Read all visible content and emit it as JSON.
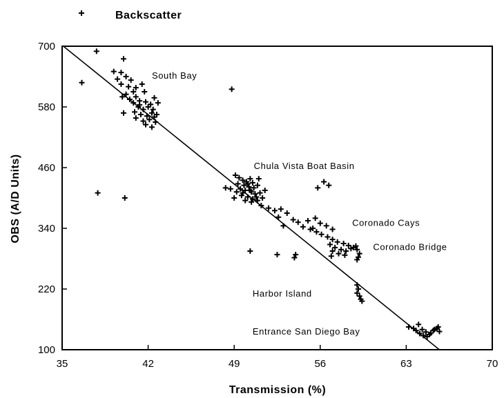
{
  "chart_data": {
    "type": "scatter",
    "title": "",
    "xlabel": "Transmission (%)",
    "ylabel": "OBS (A/D Units)",
    "xlim": [
      35,
      70
    ],
    "ylim": [
      100,
      700
    ],
    "xticks": [
      35,
      42,
      49,
      56,
      63,
      70
    ],
    "yticks": [
      100,
      220,
      340,
      460,
      580,
      700
    ],
    "grid": false,
    "legend": {
      "placement": "top-left",
      "entries": [
        {
          "marker": "+",
          "label": "Backscatter"
        }
      ]
    },
    "series": [
      {
        "name": "Backscatter",
        "marker": "+",
        "color": "#000000",
        "points": [
          [
            37.8,
            690
          ],
          [
            36.6,
            628
          ],
          [
            40.0,
            675
          ],
          [
            39.2,
            650
          ],
          [
            39.8,
            648
          ],
          [
            39.5,
            635
          ],
          [
            40.2,
            640
          ],
          [
            40.6,
            633
          ],
          [
            39.8,
            625
          ],
          [
            40.4,
            620
          ],
          [
            41.0,
            618
          ],
          [
            41.5,
            625
          ],
          [
            41.7,
            610
          ],
          [
            40.8,
            610
          ],
          [
            40.2,
            605
          ],
          [
            39.9,
            600
          ],
          [
            40.5,
            595
          ],
          [
            41.0,
            600
          ],
          [
            41.3,
            592
          ],
          [
            41.8,
            590
          ],
          [
            42.2,
            585
          ],
          [
            42.8,
            588
          ],
          [
            42.5,
            598
          ],
          [
            40.8,
            588
          ],
          [
            41.2,
            580
          ],
          [
            41.6,
            575
          ],
          [
            42.0,
            580
          ],
          [
            42.4,
            575
          ],
          [
            40.9,
            570
          ],
          [
            41.4,
            565
          ],
          [
            41.9,
            562
          ],
          [
            42.3,
            568
          ],
          [
            42.7,
            565
          ],
          [
            41.0,
            558
          ],
          [
            41.6,
            552
          ],
          [
            42.1,
            555
          ],
          [
            42.6,
            550
          ],
          [
            41.8,
            545
          ],
          [
            42.3,
            540
          ],
          [
            40.0,
            568
          ],
          [
            42.5,
            560
          ],
          [
            41.3,
            584
          ],
          [
            37.9,
            410
          ],
          [
            40.1,
            400
          ],
          [
            48.8,
            615
          ],
          [
            49.1,
            445
          ],
          [
            49.4,
            440
          ],
          [
            49.7,
            435
          ],
          [
            50.0,
            432
          ],
          [
            50.3,
            438
          ],
          [
            50.5,
            430
          ],
          [
            49.3,
            428
          ],
          [
            49.8,
            425
          ],
          [
            50.2,
            422
          ],
          [
            50.6,
            420
          ],
          [
            50.9,
            425
          ],
          [
            49.5,
            418
          ],
          [
            49.9,
            415
          ],
          [
            50.4,
            412
          ],
          [
            50.7,
            408
          ],
          [
            51.1,
            410
          ],
          [
            49.6,
            405
          ],
          [
            50.1,
            402
          ],
          [
            50.5,
            398
          ],
          [
            50.8,
            402
          ],
          [
            49.9,
            395
          ],
          [
            50.4,
            392
          ],
          [
            50.9,
            395
          ],
          [
            51.3,
            400
          ],
          [
            48.3,
            420
          ],
          [
            48.7,
            418
          ],
          [
            49.2,
            412
          ],
          [
            49.0,
            400
          ],
          [
            51.5,
            415
          ],
          [
            51.0,
            438
          ],
          [
            50.3,
            415
          ],
          [
            49.7,
            410
          ],
          [
            50.1,
            428
          ],
          [
            51.2,
            385
          ],
          [
            51.8,
            380
          ],
          [
            52.3,
            375
          ],
          [
            52.8,
            378
          ],
          [
            53.3,
            370
          ],
          [
            52.6,
            362
          ],
          [
            53.8,
            357
          ],
          [
            54.2,
            352
          ],
          [
            53.0,
            345
          ],
          [
            54.6,
            343
          ],
          [
            55.2,
            338
          ],
          [
            55.7,
            333
          ],
          [
            56.1,
            328
          ],
          [
            55.0,
            355
          ],
          [
            55.6,
            360
          ],
          [
            56.0,
            350
          ],
          [
            56.5,
            345
          ],
          [
            57.0,
            338
          ],
          [
            55.4,
            340
          ],
          [
            50.3,
            295
          ],
          [
            52.5,
            288
          ],
          [
            54.0,
            288
          ],
          [
            53.9,
            282
          ],
          [
            56.6,
            323
          ],
          [
            57.0,
            318
          ],
          [
            57.4,
            313
          ],
          [
            57.9,
            310
          ],
          [
            58.3,
            306
          ],
          [
            58.7,
            302
          ],
          [
            56.8,
            308
          ],
          [
            57.2,
            302
          ],
          [
            57.7,
            298
          ],
          [
            58.1,
            295
          ],
          [
            58.5,
            300
          ],
          [
            57.0,
            295
          ],
          [
            57.5,
            290
          ],
          [
            58.0,
            287
          ],
          [
            56.9,
            285
          ],
          [
            58.9,
            305
          ],
          [
            59.0,
            298
          ],
          [
            59.2,
            290
          ],
          [
            59.1,
            283
          ],
          [
            59.0,
            278
          ],
          [
            56.3,
            432
          ],
          [
            55.8,
            420
          ],
          [
            56.7,
            425
          ],
          [
            59.0,
            228
          ],
          [
            59.0,
            212
          ],
          [
            59.2,
            206
          ],
          [
            59.3,
            200
          ],
          [
            59.4,
            196
          ],
          [
            59.1,
            220
          ],
          [
            63.2,
            145
          ],
          [
            63.6,
            142
          ],
          [
            64.0,
            150
          ],
          [
            64.3,
            140
          ],
          [
            64.6,
            135
          ],
          [
            64.9,
            130
          ],
          [
            65.2,
            138
          ],
          [
            65.5,
            142
          ],
          [
            65.7,
            136
          ],
          [
            63.8,
            138
          ],
          [
            64.1,
            132
          ],
          [
            64.4,
            128
          ],
          [
            64.7,
            126
          ],
          [
            65.0,
            133
          ],
          [
            65.3,
            140
          ],
          [
            65.6,
            145
          ]
        ]
      },
      {
        "name": "",
        "type": "line",
        "color": "#000000",
        "x": [
          35.1,
          65.7
        ],
        "y": [
          700,
          100
        ]
      }
    ],
    "annotations": [
      {
        "text": "South Bay",
        "x": 42.3,
        "y": 636
      },
      {
        "text": "Chula Vista Boat Basin",
        "x": 50.6,
        "y": 457
      },
      {
        "text": "Coronado Cays",
        "x": 58.6,
        "y": 345
      },
      {
        "text": "Coronado Bridge",
        "x": 60.3,
        "y": 297
      },
      {
        "text": "Harbor Island",
        "x": 50.5,
        "y": 205
      },
      {
        "text": "Entrance San Diego Bay",
        "x": 50.5,
        "y": 130
      }
    ]
  }
}
